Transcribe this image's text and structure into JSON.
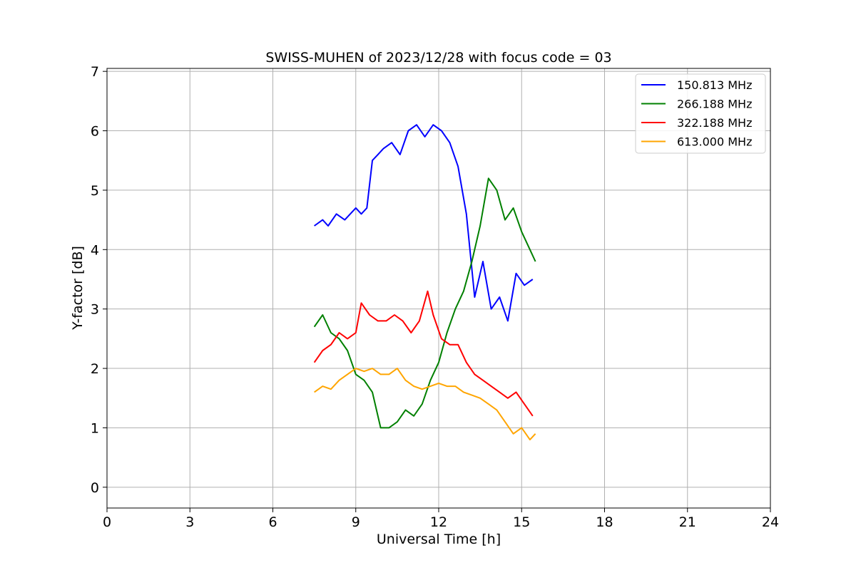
{
  "chart_data": {
    "type": "line",
    "title": "SWISS-MUHEN of 2023/12/28 with focus code = 03",
    "xlabel": "Universal Time [h]",
    "ylabel": "Y-factor [dB]",
    "xlim": [
      0,
      24
    ],
    "ylim": [
      -0.35,
      7.05
    ],
    "xticks": [
      "0",
      "3",
      "6",
      "9",
      "12",
      "15",
      "18",
      "21",
      "24"
    ],
    "xtick_values": [
      0,
      3,
      6,
      9,
      12,
      15,
      18,
      21,
      24
    ],
    "yticks": [
      "0",
      "1",
      "2",
      "3",
      "4",
      "5",
      "6",
      "7"
    ],
    "ytick_values": [
      0,
      1,
      2,
      3,
      4,
      5,
      6,
      7
    ],
    "grid": true,
    "legend_position": "top-right",
    "series": [
      {
        "name": "150.813 MHz",
        "color": "#0000ff",
        "x": [
          7.5,
          7.8,
          8.0,
          8.3,
          8.6,
          8.8,
          9.0,
          9.2,
          9.4,
          9.6,
          9.8,
          10.0,
          10.3,
          10.6,
          10.9,
          11.2,
          11.5,
          11.8,
          12.1,
          12.4,
          12.7,
          13.0,
          13.3,
          13.6,
          13.9,
          14.2,
          14.5,
          14.8,
          15.1,
          15.4
        ],
        "y": [
          4.4,
          4.5,
          4.4,
          4.6,
          4.5,
          4.6,
          4.7,
          4.6,
          4.7,
          5.5,
          5.6,
          5.7,
          5.8,
          5.6,
          6.0,
          6.1,
          5.9,
          6.1,
          6.0,
          5.8,
          5.4,
          4.6,
          3.2,
          3.8,
          3.0,
          3.2,
          2.8,
          3.6,
          3.4,
          3.5
        ]
      },
      {
        "name": "266.188 MHz",
        "color": "#008000",
        "x": [
          7.5,
          7.8,
          8.1,
          8.4,
          8.7,
          9.0,
          9.3,
          9.6,
          9.9,
          10.2,
          10.5,
          10.8,
          11.1,
          11.4,
          11.7,
          12.0,
          12.3,
          12.6,
          12.9,
          13.2,
          13.5,
          13.8,
          14.1,
          14.4,
          14.7,
          15.0,
          15.3,
          15.5
        ],
        "y": [
          2.7,
          2.9,
          2.6,
          2.5,
          2.3,
          1.9,
          1.8,
          1.6,
          1.0,
          1.0,
          1.1,
          1.3,
          1.2,
          1.4,
          1.8,
          2.1,
          2.6,
          3.0,
          3.3,
          3.8,
          4.4,
          5.2,
          5.0,
          4.5,
          4.7,
          4.3,
          4.0,
          3.8
        ]
      },
      {
        "name": "322.188 MHz",
        "color": "#ff0000",
        "x": [
          7.5,
          7.8,
          8.1,
          8.4,
          8.7,
          9.0,
          9.2,
          9.5,
          9.8,
          10.1,
          10.4,
          10.7,
          11.0,
          11.3,
          11.6,
          11.8,
          12.1,
          12.4,
          12.7,
          13.0,
          13.3,
          13.6,
          13.9,
          14.2,
          14.5,
          14.8,
          15.1,
          15.4
        ],
        "y": [
          2.1,
          2.3,
          2.4,
          2.6,
          2.5,
          2.6,
          3.1,
          2.9,
          2.8,
          2.8,
          2.9,
          2.8,
          2.6,
          2.8,
          3.3,
          2.9,
          2.5,
          2.4,
          2.4,
          2.1,
          1.9,
          1.8,
          1.7,
          1.6,
          1.5,
          1.6,
          1.4,
          1.2
        ]
      },
      {
        "name": "613.000 MHz",
        "color": "#ffa500",
        "x": [
          7.5,
          7.8,
          8.1,
          8.4,
          8.7,
          9.0,
          9.3,
          9.6,
          9.9,
          10.2,
          10.5,
          10.8,
          11.1,
          11.4,
          11.7,
          12.0,
          12.3,
          12.6,
          12.9,
          13.2,
          13.5,
          13.8,
          14.1,
          14.4,
          14.7,
          15.0,
          15.3,
          15.5
        ],
        "y": [
          1.6,
          1.7,
          1.65,
          1.8,
          1.9,
          2.0,
          1.95,
          2.0,
          1.9,
          1.9,
          2.0,
          1.8,
          1.7,
          1.65,
          1.7,
          1.75,
          1.7,
          1.7,
          1.6,
          1.55,
          1.5,
          1.4,
          1.3,
          1.1,
          0.9,
          1.0,
          0.8,
          0.9
        ]
      }
    ]
  }
}
